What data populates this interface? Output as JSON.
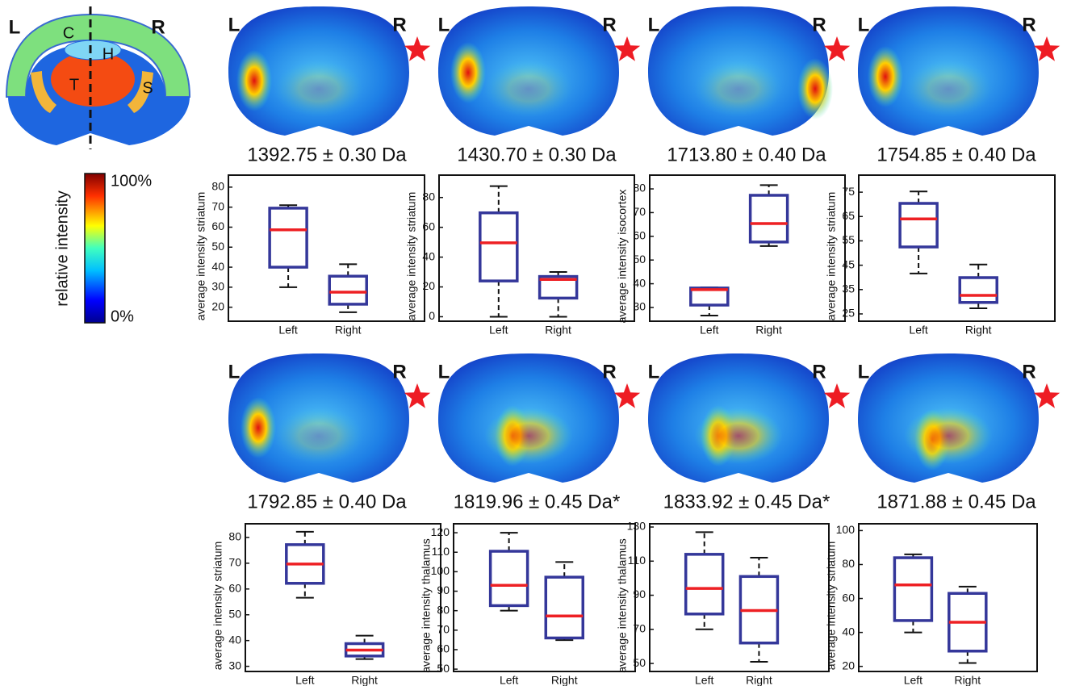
{
  "atlas": {
    "left": "L",
    "right": "R",
    "regions": [
      "C",
      "H",
      "T",
      "S"
    ]
  },
  "colorbar": {
    "label": "relative intensity",
    "max": "100%",
    "min": "0%"
  },
  "chart_data": [
    {
      "type": "box",
      "title": "1392.75 ± 0.30 Da",
      "image_labels": [
        "L",
        "R"
      ],
      "ylabel": "average intensity striatum",
      "categories": [
        "Left",
        "Right"
      ],
      "box_color": "#34379a",
      "median_color": "#ee2024",
      "boxes": [
        {
          "whislo": 30,
          "q1": 40,
          "med": 58.7,
          "q3": 69.5,
          "whishi": 71
        },
        {
          "whislo": 17.5,
          "q1": 21.5,
          "med": 27.5,
          "q3": 35.5,
          "whishi": 41.5
        }
      ],
      "ylim": [
        13,
        86
      ],
      "yticks": [
        20,
        30,
        40,
        50,
        60,
        70,
        80
      ]
    },
    {
      "type": "box",
      "title": "1430.70 ± 0.30 Da",
      "image_labels": [
        "L",
        "R"
      ],
      "ylabel": "average intensity striatum",
      "categories": [
        "Left",
        "Right"
      ],
      "box_color": "#34379a",
      "median_color": "#ee2024",
      "boxes": [
        {
          "whislo": 0,
          "q1": 24,
          "med": 49.6,
          "q3": 69.7,
          "whishi": 87.6
        },
        {
          "whislo": 0,
          "q1": 12.5,
          "med": 25,
          "q3": 27,
          "whishi": 30
        }
      ],
      "ylim": [
        -3,
        95
      ],
      "yticks": [
        0,
        20,
        40,
        60,
        80
      ]
    },
    {
      "type": "box",
      "title": "1713.80 ± 0.40 Da",
      "image_labels": [
        "L",
        "R"
      ],
      "ylabel": "average intensity isocortex",
      "categories": [
        "Left",
        "Right"
      ],
      "box_color": "#34379a",
      "median_color": "#ee2024",
      "boxes": [
        {
          "whislo": 26.6,
          "q1": 31,
          "med": 37.5,
          "q3": 38.2,
          "whishi": 38.5
        },
        {
          "whislo": 55.9,
          "q1": 57.6,
          "med": 65.4,
          "q3": 77.3,
          "whishi": 81.6
        }
      ],
      "ylim": [
        24.2,
        85.8
      ],
      "yticks": [
        30,
        40,
        50,
        60,
        70,
        80
      ]
    },
    {
      "type": "box",
      "title": "1754.85 ± 0.40 Da",
      "image_labels": [
        "L",
        "R"
      ],
      "ylabel": "average intensity striatum",
      "categories": [
        "Left",
        "Right"
      ],
      "box_color": "#34379a",
      "median_color": "#ee2024",
      "boxes": [
        {
          "whislo": 41.6,
          "q1": 52.5,
          "med": 64,
          "q3": 70.4,
          "whishi": 75.3
        },
        {
          "whislo": 27.3,
          "q1": 29.7,
          "med": 32.6,
          "q3": 39.9,
          "whishi": 45.3
        }
      ],
      "ylim": [
        22,
        82
      ],
      "yticks": [
        25,
        35,
        45,
        55,
        65,
        75
      ]
    },
    {
      "type": "box",
      "title": "1792.85 ± 0.40 Da",
      "image_labels": [
        "L",
        "R"
      ],
      "ylabel": "average intensity striatum",
      "categories": [
        "Left",
        "Right"
      ],
      "box_color": "#34379a",
      "median_color": "#ee2024",
      "boxes": [
        {
          "whislo": 56.6,
          "q1": 62.2,
          "med": 69.7,
          "q3": 77.2,
          "whishi": 82.2
        },
        {
          "whislo": 32.8,
          "q1": 34,
          "med": 36.3,
          "q3": 38.8,
          "whishi": 41.9
        }
      ],
      "ylim": [
        28,
        85.3
      ],
      "yticks": [
        30,
        40,
        50,
        60,
        70,
        80
      ]
    },
    {
      "type": "box",
      "title": "1819.96 ± 0.45 Da*",
      "image_labels": [
        "L",
        "R"
      ],
      "ylabel": "average intensity thalamus",
      "categories": [
        "Left",
        "Right"
      ],
      "box_color": "#34379a",
      "median_color": "#ee2024",
      "boxes": [
        {
          "whislo": 80,
          "q1": 82.6,
          "med": 93,
          "q3": 110.5,
          "whishi": 120
        },
        {
          "whislo": 64.9,
          "q1": 66,
          "med": 77.3,
          "q3": 97.2,
          "whishi": 105
        }
      ],
      "ylim": [
        48.8,
        124.6
      ],
      "yticks": [
        50,
        60,
        70,
        80,
        90,
        100,
        110,
        120
      ]
    },
    {
      "type": "box",
      "title": "1833.92 ± 0.45 Da*",
      "image_labels": [
        "L",
        "R"
      ],
      "ylabel": "average intensity thalamus",
      "categories": [
        "Left",
        "Right"
      ],
      "box_color": "#34379a",
      "median_color": "#ee2024",
      "boxes": [
        {
          "whislo": 70,
          "q1": 79,
          "med": 94,
          "q3": 114,
          "whishi": 127
        },
        {
          "whislo": 51,
          "q1": 62,
          "med": 81,
          "q3": 101,
          "whishi": 112
        }
      ],
      "ylim": [
        45.3,
        131.9
      ],
      "yticks": [
        50,
        70,
        90,
        110,
        130
      ]
    },
    {
      "type": "box",
      "title": "1871.88 ± 0.45 Da",
      "image_labels": [
        "L",
        "R"
      ],
      "ylabel": "average intensity striatum",
      "categories": [
        "Left",
        "Right"
      ],
      "box_color": "#34379a",
      "median_color": "#ee2024",
      "boxes": [
        {
          "whislo": 40,
          "q1": 47,
          "med": 68,
          "q3": 84,
          "whishi": 86
        },
        {
          "whislo": 22,
          "q1": 29,
          "med": 46,
          "q3": 63,
          "whishi": 67
        }
      ],
      "ylim": [
        17,
        104
      ],
      "yticks": [
        20,
        40,
        60,
        80,
        100
      ]
    }
  ]
}
